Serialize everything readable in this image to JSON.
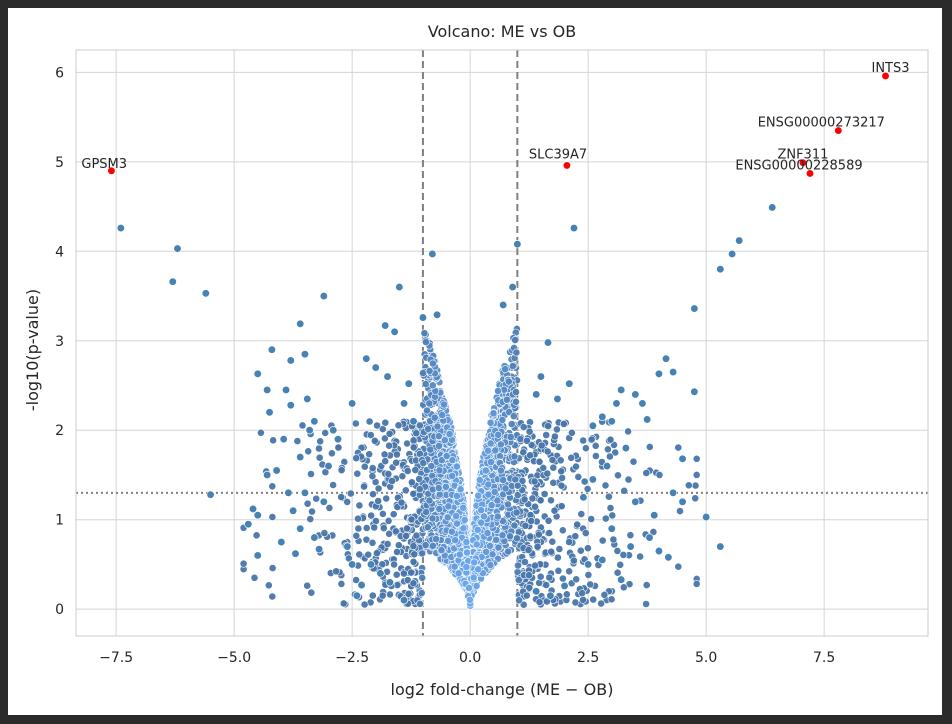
{
  "chart_data": {
    "type": "scatter",
    "title": "Volcano: ME vs OB",
    "xlabel": "log2 fold-change (ME − OB)",
    "ylabel": "-log10(p-value)",
    "xlim": [
      -8.35,
      9.7
    ],
    "ylim": [
      -0.3,
      6.25
    ],
    "xticks": [
      -7.5,
      -5.0,
      -2.5,
      0.0,
      2.5,
      5.0,
      7.5
    ],
    "xtick_labels": [
      "−7.5",
      "−5.0",
      "−2.5",
      "0.0",
      "2.5",
      "5.0",
      "7.5"
    ],
    "yticks": [
      0,
      1,
      2,
      3,
      4,
      5,
      6
    ],
    "ytick_labels": [
      "0",
      "1",
      "2",
      "3",
      "4",
      "5",
      "6"
    ],
    "grid": true,
    "vlines": [
      -1,
      1
    ],
    "hline": 1.3,
    "colors": {
      "points": "#4682b4",
      "highlight": "#ff0000",
      "grid": "#d5d5d5",
      "threshold": "#808080"
    },
    "highlighted": [
      {
        "label": "INTS3",
        "x": 8.8,
        "y": 5.96
      },
      {
        "label": "ENSG00000273217",
        "x": 7.8,
        "y": 5.35
      },
      {
        "label": "ZNF311",
        "x": 7.05,
        "y": 4.99
      },
      {
        "label": "ENSG00000228589",
        "x": 7.2,
        "y": 4.87
      },
      {
        "label": "SLC39A7",
        "x": 2.05,
        "y": 4.96
      },
      {
        "label": "GPSM3",
        "x": -7.6,
        "y": 4.9
      }
    ],
    "points": [
      [
        -7.4,
        4.26
      ],
      [
        -6.2,
        4.03
      ],
      [
        -6.3,
        3.66
      ],
      [
        -5.6,
        3.53
      ],
      [
        -5.5,
        1.28
      ],
      [
        -4.6,
        1.12
      ],
      [
        -4.5,
        0.6
      ],
      [
        -4.5,
        1.05
      ],
      [
        -4.5,
        2.63
      ],
      [
        -4.2,
        2.9
      ],
      [
        -4.25,
        2.2
      ],
      [
        -4.3,
        2.45
      ],
      [
        -3.9,
        2.45
      ],
      [
        -3.8,
        2.78
      ],
      [
        -3.8,
        2.28
      ],
      [
        -3.6,
        3.19
      ],
      [
        -3.5,
        2.85
      ],
      [
        -3.45,
        2.35
      ],
      [
        -3.7,
        0.62
      ],
      [
        -3.1,
        3.5
      ],
      [
        -3.2,
        0.67
      ],
      [
        -2.3,
        0.27
      ],
      [
        -2.2,
        2.8
      ],
      [
        -2.1,
        0.5
      ],
      [
        -1.8,
        3.17
      ],
      [
        -1.6,
        3.1
      ],
      [
        -1.5,
        3.6
      ],
      [
        -1.3,
        2.52
      ],
      [
        -1.0,
        3.26
      ],
      [
        -0.8,
        3.97
      ],
      [
        -0.7,
        3.29
      ],
      [
        0.7,
        3.4
      ],
      [
        0.9,
        3.6
      ],
      [
        1.0,
        4.08
      ],
      [
        1.65,
        2.98
      ],
      [
        2.0,
        0.26
      ],
      [
        2.2,
        4.26
      ],
      [
        2.1,
        2.52
      ],
      [
        3.0,
        2.1
      ],
      [
        3.2,
        0.33
      ],
      [
        4.0,
        2.63
      ],
      [
        4.15,
        2.8
      ],
      [
        4.3,
        2.65
      ],
      [
        4.5,
        1.68
      ],
      [
        4.75,
        3.36
      ],
      [
        4.75,
        2.43
      ],
      [
        5.0,
        1.03
      ],
      [
        5.3,
        0.7
      ],
      [
        5.3,
        3.8
      ],
      [
        5.55,
        3.97
      ],
      [
        5.7,
        4.12
      ],
      [
        6.4,
        4.49
      ],
      [
        -4.7,
        0.95
      ],
      [
        -4.0,
        0.75
      ],
      [
        -3.0,
        1.6
      ],
      [
        -2.8,
        1.9
      ],
      [
        2.9,
        1.6
      ],
      [
        3.3,
        1.8
      ],
      [
        3.5,
        1.2
      ],
      [
        3.8,
        0.8
      ],
      [
        4.2,
        0.58
      ],
      [
        4.0,
        0.65
      ],
      [
        4.5,
        1.2
      ],
      [
        3.65,
        2.3
      ],
      [
        3.75,
        2.12
      ],
      [
        3.5,
        2.4
      ],
      [
        2.6,
        2.05
      ],
      [
        2.8,
        2.15
      ],
      [
        3.1,
        2.3
      ],
      [
        3.2,
        2.45
      ],
      [
        1.5,
        2.6
      ],
      [
        1.4,
        2.4
      ],
      [
        1.85,
        2.35
      ],
      [
        -2.0,
        2.7
      ],
      [
        -1.75,
        2.6
      ],
      [
        -1.4,
        2.3
      ],
      [
        -1.2,
        2.1
      ],
      [
        -2.5,
        2.3
      ],
      [
        -3.3,
        2.1
      ],
      [
        -3.4,
        2.0
      ],
      [
        -2.9,
        2.0
      ],
      [
        -3.6,
        1.7
      ],
      [
        -4.3,
        1.5
      ],
      [
        -4.1,
        1.55
      ],
      [
        -3.95,
        1.9
      ],
      [
        -3.85,
        1.3
      ],
      [
        -3.75,
        1.1
      ],
      [
        -3.6,
        0.9
      ],
      [
        -3.5,
        1.3
      ],
      [
        -3.3,
        0.8
      ],
      [
        -3.1,
        1.2
      ],
      [
        -2.6,
        0.7
      ],
      [
        -2.5,
        0.5
      ],
      [
        -2.4,
        0.15
      ],
      [
        -1.9,
        0.4
      ],
      [
        -1.7,
        0.3
      ],
      [
        -1.4,
        0.1
      ],
      [
        1.4,
        0.2
      ],
      [
        1.7,
        0.15
      ],
      [
        2.5,
        0.5
      ],
      [
        2.8,
        0.55
      ],
      [
        3.0,
        0.9
      ],
      [
        3.4,
        0.7
      ],
      [
        3.9,
        1.05
      ],
      [
        4.3,
        1.3
      ],
      [
        2.4,
        1.25
      ],
      [
        2.6,
        1.45
      ]
    ]
  }
}
